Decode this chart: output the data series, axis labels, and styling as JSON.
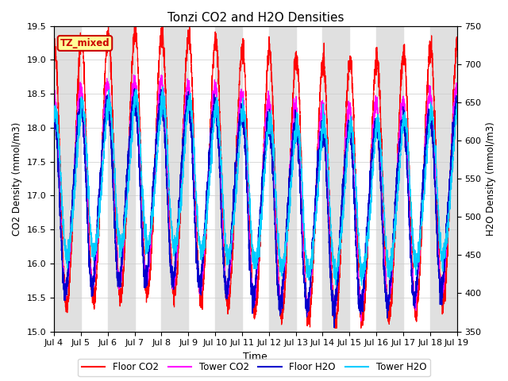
{
  "title": "Tonzi CO2 and H2O Densities",
  "xlabel": "Time",
  "ylabel_left": "CO2 Density (mmol/m3)",
  "ylabel_right": "H2O Density (mmol/m3)",
  "ylim_left": [
    15.0,
    19.5
  ],
  "ylim_right": [
    350,
    750
  ],
  "xtick_labels": [
    "Jul 4",
    "Jul 5",
    "Jul 6",
    "Jul 7",
    "Jul 8",
    "Jul 9",
    "Jul 10",
    "Jul 11",
    "Jul 12",
    "Jul 13",
    "Jul 14",
    "Jul 15",
    "Jul 16",
    "Jul 17",
    "Jul 18",
    "Jul 19"
  ],
  "annotation_text": "TZ_mixed",
  "annotation_color": "#cc0000",
  "annotation_bg": "#ffff99",
  "annotation_border": "#cc0000",
  "colors": {
    "floor_co2": "#ff0000",
    "tower_co2": "#ff00ff",
    "floor_h2o": "#0000cc",
    "tower_h2o": "#00ccff"
  },
  "legend_labels": [
    "Floor CO2",
    "Tower CO2",
    "Floor H2O",
    "Tower H2O"
  ],
  "background_band_color": "#e0e0e0",
  "n_points": 4320,
  "seed": 42
}
